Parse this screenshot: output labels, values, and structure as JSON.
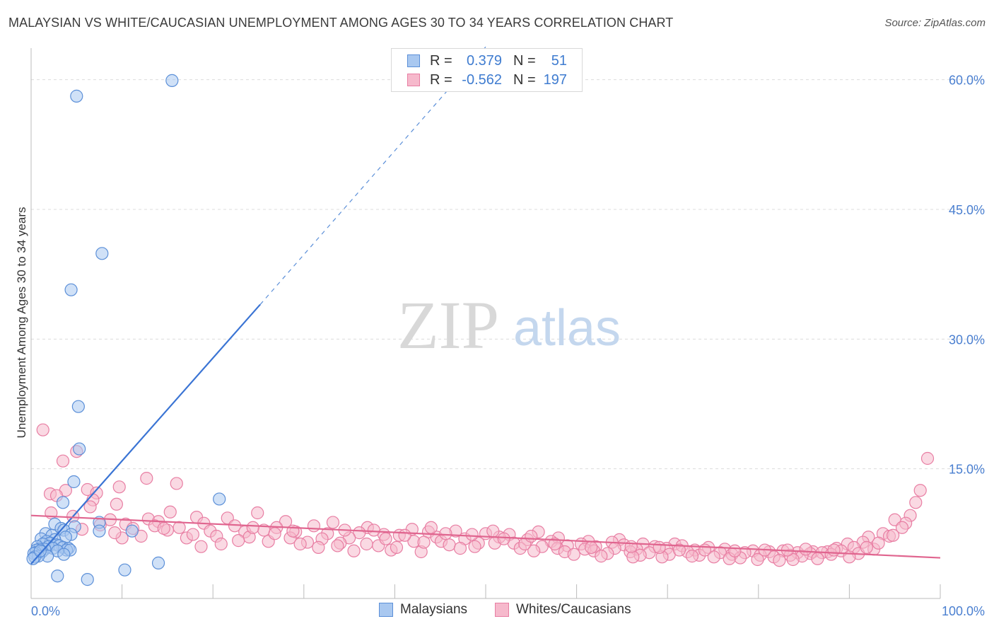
{
  "title": "MALAYSIAN VS WHITE/CAUCASIAN UNEMPLOYMENT AMONG AGES 30 TO 34 YEARS CORRELATION CHART",
  "source": "Source: ZipAtlas.com",
  "watermark": {
    "zip": "ZIP",
    "atlas": "atlas"
  },
  "colors": {
    "blue": "#3a74d4",
    "blue_fill": "#a9c8f0",
    "blue_stroke": "#5b8fd8",
    "pink": "#e0658f",
    "pink_fill": "#f6b9cc",
    "pink_stroke": "#e87ea3",
    "grid": "#dcdcdc",
    "tick_label": "#4a7fd0"
  },
  "legend": {
    "rows": [
      {
        "r_label": "R =",
        "r_value": "0.379",
        "n_label": "N =",
        "n_value": "51"
      },
      {
        "r_label": "R =",
        "r_value": "-0.562",
        "n_label": "N =",
        "n_value": "197"
      }
    ]
  },
  "bottom_legend": {
    "malaysians": "Malaysians",
    "whites": "Whites/Caucasians"
  },
  "chart_data": {
    "type": "scatter",
    "title": "MALAYSIAN VS WHITE/CAUCASIAN UNEMPLOYMENT AMONG AGES 30 TO 34 YEARS CORRELATION CHART",
    "xlabel": "",
    "ylabel": "Unemployment Among Ages 30 to 34 years",
    "xlim": [
      0,
      100
    ],
    "ylim": [
      0,
      63
    ],
    "x_tick_labels": [
      {
        "value": 0,
        "label": "0.0%"
      },
      {
        "value": 100,
        "label": "100.0%"
      }
    ],
    "y_tick_labels": [
      {
        "value": 15,
        "label": "15.0%"
      },
      {
        "value": 30,
        "label": "30.0%"
      },
      {
        "value": 45,
        "label": "45.0%"
      },
      {
        "value": 60,
        "label": "60.0%"
      }
    ],
    "x_minor_ticks": [
      10,
      20,
      30,
      40,
      50,
      60,
      70,
      80,
      90
    ],
    "series": [
      {
        "name": "Malaysians",
        "r": 0.379,
        "n": 51,
        "trend": {
          "x0": 0,
          "y0": 4.0,
          "x1": 25.2,
          "y1": 34.0,
          "dash_to_x": 50,
          "dash_to_y": 63.8
        },
        "points": [
          [
            15.5,
            59.9
          ],
          [
            5.0,
            58.1
          ],
          [
            7.8,
            39.9
          ],
          [
            4.4,
            35.7
          ],
          [
            5.2,
            22.2
          ],
          [
            5.3,
            17.3
          ],
          [
            4.7,
            13.5
          ],
          [
            20.7,
            11.5
          ],
          [
            3.5,
            11.1
          ],
          [
            7.5,
            8.8
          ],
          [
            2.6,
            8.6
          ],
          [
            4.8,
            8.3
          ],
          [
            3.3,
            8.1
          ],
          [
            3.6,
            7.9
          ],
          [
            7.5,
            7.8
          ],
          [
            11.1,
            7.8
          ],
          [
            1.6,
            7.5
          ],
          [
            4.4,
            7.4
          ],
          [
            2.3,
            7.3
          ],
          [
            3.8,
            7.1
          ],
          [
            1.1,
            6.9
          ],
          [
            2.6,
            6.8
          ],
          [
            1.7,
            6.6
          ],
          [
            2.1,
            6.4
          ],
          [
            1.3,
            6.3
          ],
          [
            2.8,
            6.2
          ],
          [
            3.1,
            6.1
          ],
          [
            0.7,
            6.0
          ],
          [
            1.9,
            6.0
          ],
          [
            3.5,
            5.9
          ],
          [
            4.1,
            5.8
          ],
          [
            2.4,
            5.8
          ],
          [
            1.5,
            5.7
          ],
          [
            0.9,
            5.7
          ],
          [
            0.6,
            5.6
          ],
          [
            3.9,
            5.6
          ],
          [
            4.3,
            5.6
          ],
          [
            2.9,
            5.5
          ],
          [
            1.2,
            5.4
          ],
          [
            0.5,
            5.3
          ],
          [
            0.3,
            5.2
          ],
          [
            3.6,
            5.1
          ],
          [
            1.8,
            4.9
          ],
          [
            0.8,
            4.9
          ],
          [
            0.4,
            4.8
          ],
          [
            0.2,
            4.6
          ],
          [
            14.0,
            4.1
          ],
          [
            10.3,
            3.3
          ],
          [
            2.9,
            2.6
          ],
          [
            6.2,
            2.2
          ],
          [
            1.0,
            5.5
          ]
        ]
      },
      {
        "name": "Whites/Caucasians",
        "r": -0.562,
        "n": 197,
        "trend": {
          "x0": 0,
          "y0": 9.6,
          "x1": 100,
          "y1": 4.7
        },
        "points": [
          [
            1.3,
            19.5
          ],
          [
            98.6,
            16.2
          ],
          [
            5.0,
            17.0
          ],
          [
            3.5,
            15.9
          ],
          [
            12.7,
            13.9
          ],
          [
            16.0,
            13.3
          ],
          [
            9.7,
            12.9
          ],
          [
            3.8,
            12.5
          ],
          [
            6.2,
            12.6
          ],
          [
            2.1,
            12.1
          ],
          [
            7.2,
            12.2
          ],
          [
            2.8,
            11.9
          ],
          [
            97.8,
            12.5
          ],
          [
            6.8,
            11.4
          ],
          [
            9.4,
            10.9
          ],
          [
            97.3,
            11.1
          ],
          [
            6.5,
            10.6
          ],
          [
            2.2,
            9.9
          ],
          [
            15.3,
            10.0
          ],
          [
            24.9,
            9.9
          ],
          [
            96.7,
            9.6
          ],
          [
            4.6,
            9.5
          ],
          [
            12.9,
            9.2
          ],
          [
            18.2,
            9.4
          ],
          [
            21.6,
            9.3
          ],
          [
            8.7,
            9.1
          ],
          [
            14.0,
            8.9
          ],
          [
            19.0,
            8.7
          ],
          [
            28.0,
            8.9
          ],
          [
            33.2,
            8.8
          ],
          [
            96.2,
            8.7
          ],
          [
            95.0,
            9.1
          ],
          [
            7.6,
            8.5
          ],
          [
            10.4,
            8.6
          ],
          [
            13.6,
            8.4
          ],
          [
            16.3,
            8.2
          ],
          [
            22.4,
            8.4
          ],
          [
            27.0,
            8.2
          ],
          [
            31.1,
            8.4
          ],
          [
            37.0,
            8.2
          ],
          [
            41.9,
            8.0
          ],
          [
            95.8,
            8.2
          ],
          [
            5.6,
            8.0
          ],
          [
            11.2,
            8.1
          ],
          [
            15.0,
            7.9
          ],
          [
            19.7,
            7.8
          ],
          [
            23.5,
            7.7
          ],
          [
            25.6,
            7.9
          ],
          [
            29.1,
            7.7
          ],
          [
            32.6,
            7.5
          ],
          [
            36.1,
            7.6
          ],
          [
            38.8,
            7.4
          ],
          [
            43.7,
            7.7
          ],
          [
            46.7,
            7.8
          ],
          [
            50.0,
            7.5
          ],
          [
            52.6,
            7.4
          ],
          [
            55.8,
            7.7
          ],
          [
            93.7,
            7.5
          ],
          [
            92.1,
            7.1
          ],
          [
            94.4,
            7.2
          ],
          [
            12.1,
            7.2
          ],
          [
            17.1,
            7.0
          ],
          [
            20.4,
            7.2
          ],
          [
            24.0,
            7.1
          ],
          [
            28.5,
            7.0
          ],
          [
            32.0,
            6.9
          ],
          [
            35.0,
            7.0
          ],
          [
            40.5,
            7.3
          ],
          [
            44.6,
            7.1
          ],
          [
            47.7,
            6.9
          ],
          [
            51.5,
            7.1
          ],
          [
            54.6,
            6.8
          ],
          [
            58.0,
            7.0
          ],
          [
            61.3,
            6.6
          ],
          [
            64.7,
            6.8
          ],
          [
            91.5,
            6.5
          ],
          [
            89.8,
            6.3
          ],
          [
            26.1,
            6.6
          ],
          [
            30.4,
            6.5
          ],
          [
            34.0,
            6.4
          ],
          [
            36.9,
            6.3
          ],
          [
            42.1,
            6.6
          ],
          [
            45.1,
            6.6
          ],
          [
            49.2,
            6.4
          ],
          [
            53.1,
            6.4
          ],
          [
            57.2,
            6.6
          ],
          [
            60.5,
            6.3
          ],
          [
            63.9,
            6.5
          ],
          [
            67.3,
            6.3
          ],
          [
            70.8,
            6.3
          ],
          [
            20.9,
            6.3
          ],
          [
            38.2,
            6.1
          ],
          [
            46.0,
            6.2
          ],
          [
            56.2,
            6.0
          ],
          [
            59.0,
            6.1
          ],
          [
            62.1,
            6.0
          ],
          [
            65.2,
            6.2
          ],
          [
            68.6,
            6.0
          ],
          [
            71.6,
            6.1
          ],
          [
            74.5,
            5.9
          ],
          [
            90.5,
            5.9
          ],
          [
            88.6,
            5.8
          ],
          [
            31.6,
            5.9
          ],
          [
            39.6,
            5.6
          ],
          [
            47.2,
            5.8
          ],
          [
            53.8,
            5.8
          ],
          [
            57.9,
            5.8
          ],
          [
            60.9,
            5.7
          ],
          [
            64.2,
            5.8
          ],
          [
            66.6,
            5.7
          ],
          [
            69.9,
            5.8
          ],
          [
            73.0,
            5.6
          ],
          [
            76.3,
            5.7
          ],
          [
            79.4,
            5.5
          ],
          [
            82.7,
            5.5
          ],
          [
            86.0,
            5.4
          ],
          [
            87.6,
            5.4
          ],
          [
            92.7,
            5.7
          ],
          [
            35.5,
            5.5
          ],
          [
            42.9,
            5.4
          ],
          [
            55.3,
            5.5
          ],
          [
            58.7,
            5.4
          ],
          [
            61.9,
            5.5
          ],
          [
            65.9,
            5.4
          ],
          [
            68.0,
            5.3
          ],
          [
            72.2,
            5.4
          ],
          [
            75.8,
            5.3
          ],
          [
            78.5,
            5.3
          ],
          [
            81.2,
            5.4
          ],
          [
            84.3,
            5.3
          ],
          [
            87.0,
            5.3
          ],
          [
            89.1,
            5.5
          ],
          [
            59.7,
            5.1
          ],
          [
            63.4,
            5.2
          ],
          [
            67.0,
            5.0
          ],
          [
            70.2,
            5.1
          ],
          [
            73.5,
            5.0
          ],
          [
            77.1,
            5.1
          ],
          [
            80.2,
            5.0
          ],
          [
            83.5,
            5.0
          ],
          [
            85.7,
            5.2
          ],
          [
            88.0,
            5.1
          ],
          [
            91.0,
            5.2
          ],
          [
            62.7,
            4.9
          ],
          [
            66.2,
            4.8
          ],
          [
            69.4,
            4.8
          ],
          [
            72.7,
            4.9
          ],
          [
            75.1,
            4.8
          ],
          [
            78.0,
            4.7
          ],
          [
            81.7,
            4.8
          ],
          [
            84.8,
            4.9
          ],
          [
            86.5,
            4.6
          ],
          [
            90.0,
            4.8
          ],
          [
            76.8,
            4.6
          ],
          [
            79.9,
            4.5
          ],
          [
            82.3,
            4.4
          ],
          [
            83.8,
            4.5
          ],
          [
            44.0,
            8.2
          ],
          [
            48.5,
            7.4
          ],
          [
            26.8,
            7.5
          ],
          [
            17.8,
            7.4
          ],
          [
            10.0,
            7.0
          ],
          [
            18.7,
            6.0
          ],
          [
            22.8,
            6.7
          ],
          [
            29.6,
            6.3
          ],
          [
            33.7,
            6.1
          ],
          [
            40.2,
            5.9
          ],
          [
            48.8,
            6.0
          ],
          [
            51.0,
            6.4
          ],
          [
            54.3,
            6.3
          ],
          [
            57.6,
            6.3
          ],
          [
            61.6,
            5.9
          ],
          [
            66.0,
            6.0
          ],
          [
            69.1,
            5.9
          ],
          [
            71.3,
            5.6
          ],
          [
            74.1,
            5.6
          ],
          [
            77.4,
            5.5
          ],
          [
            80.7,
            5.6
          ],
          [
            83.2,
            5.6
          ],
          [
            85.2,
            5.7
          ],
          [
            88.3,
            5.6
          ],
          [
            91.9,
            5.9
          ],
          [
            93.2,
            6.4
          ],
          [
            94.8,
            7.3
          ],
          [
            9.2,
            7.6
          ],
          [
            14.6,
            8.1
          ],
          [
            24.4,
            8.2
          ],
          [
            28.8,
            7.8
          ],
          [
            37.7,
            7.9
          ],
          [
            41.1,
            7.3
          ],
          [
            45.6,
            7.5
          ],
          [
            50.8,
            7.8
          ],
          [
            52.0,
            6.9
          ],
          [
            55.0,
            7.2
          ],
          [
            39.0,
            6.9
          ],
          [
            34.5,
            7.9
          ],
          [
            43.2,
            6.5
          ]
        ]
      }
    ]
  }
}
